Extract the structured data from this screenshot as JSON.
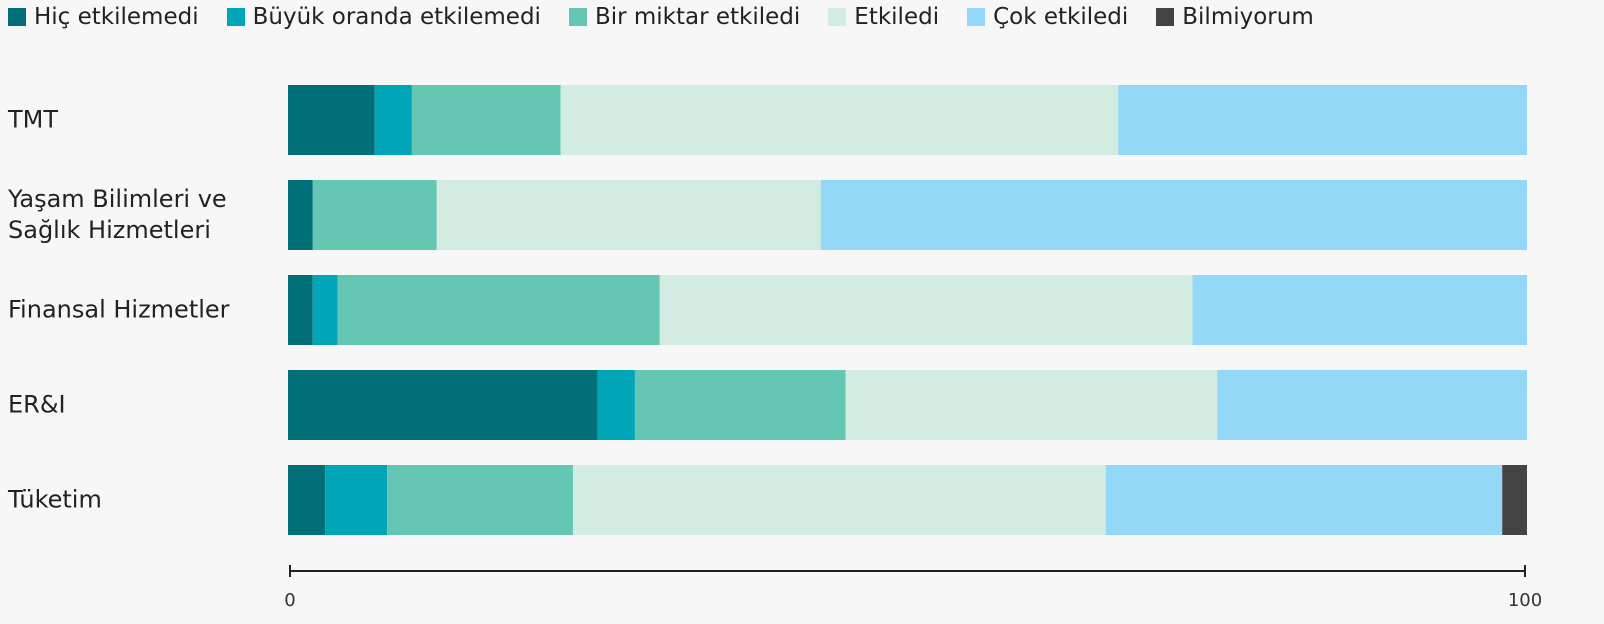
{
  "chart_data": {
    "type": "stacked_barh",
    "categories": [
      "TMT",
      "Yaşam Bilimleri ve Sağlık Hizmetleri",
      "Finansal Hizmetler",
      "ER&I",
      "Tüketim"
    ],
    "series": [
      {
        "name": "Hiç etkilemedi",
        "color": "#006f78",
        "values": [
          7,
          2,
          2,
          25,
          3
        ]
      },
      {
        "name": "Büyük oranda etkilemedi",
        "color": "#00a5b8",
        "values": [
          3,
          0,
          2,
          3,
          5
        ]
      },
      {
        "name": "Bir miktar etkiledi",
        "color": "#65c6b4",
        "values": [
          12,
          10,
          26,
          17,
          15
        ]
      },
      {
        "name": "Etkiledi",
        "color": "#d2ece2",
        "values": [
          45,
          31,
          43,
          30,
          43
        ]
      },
      {
        "name": "Çok etkiledi",
        "color": "#94d8f7",
        "values": [
          33,
          57,
          27,
          25,
          32
        ]
      },
      {
        "name": "Bilmiyorum",
        "color": "#444444",
        "values": [
          0,
          0,
          0,
          0,
          2
        ]
      }
    ],
    "xlim": [
      0,
      100
    ],
    "xticks": [
      0,
      100
    ]
  }
}
